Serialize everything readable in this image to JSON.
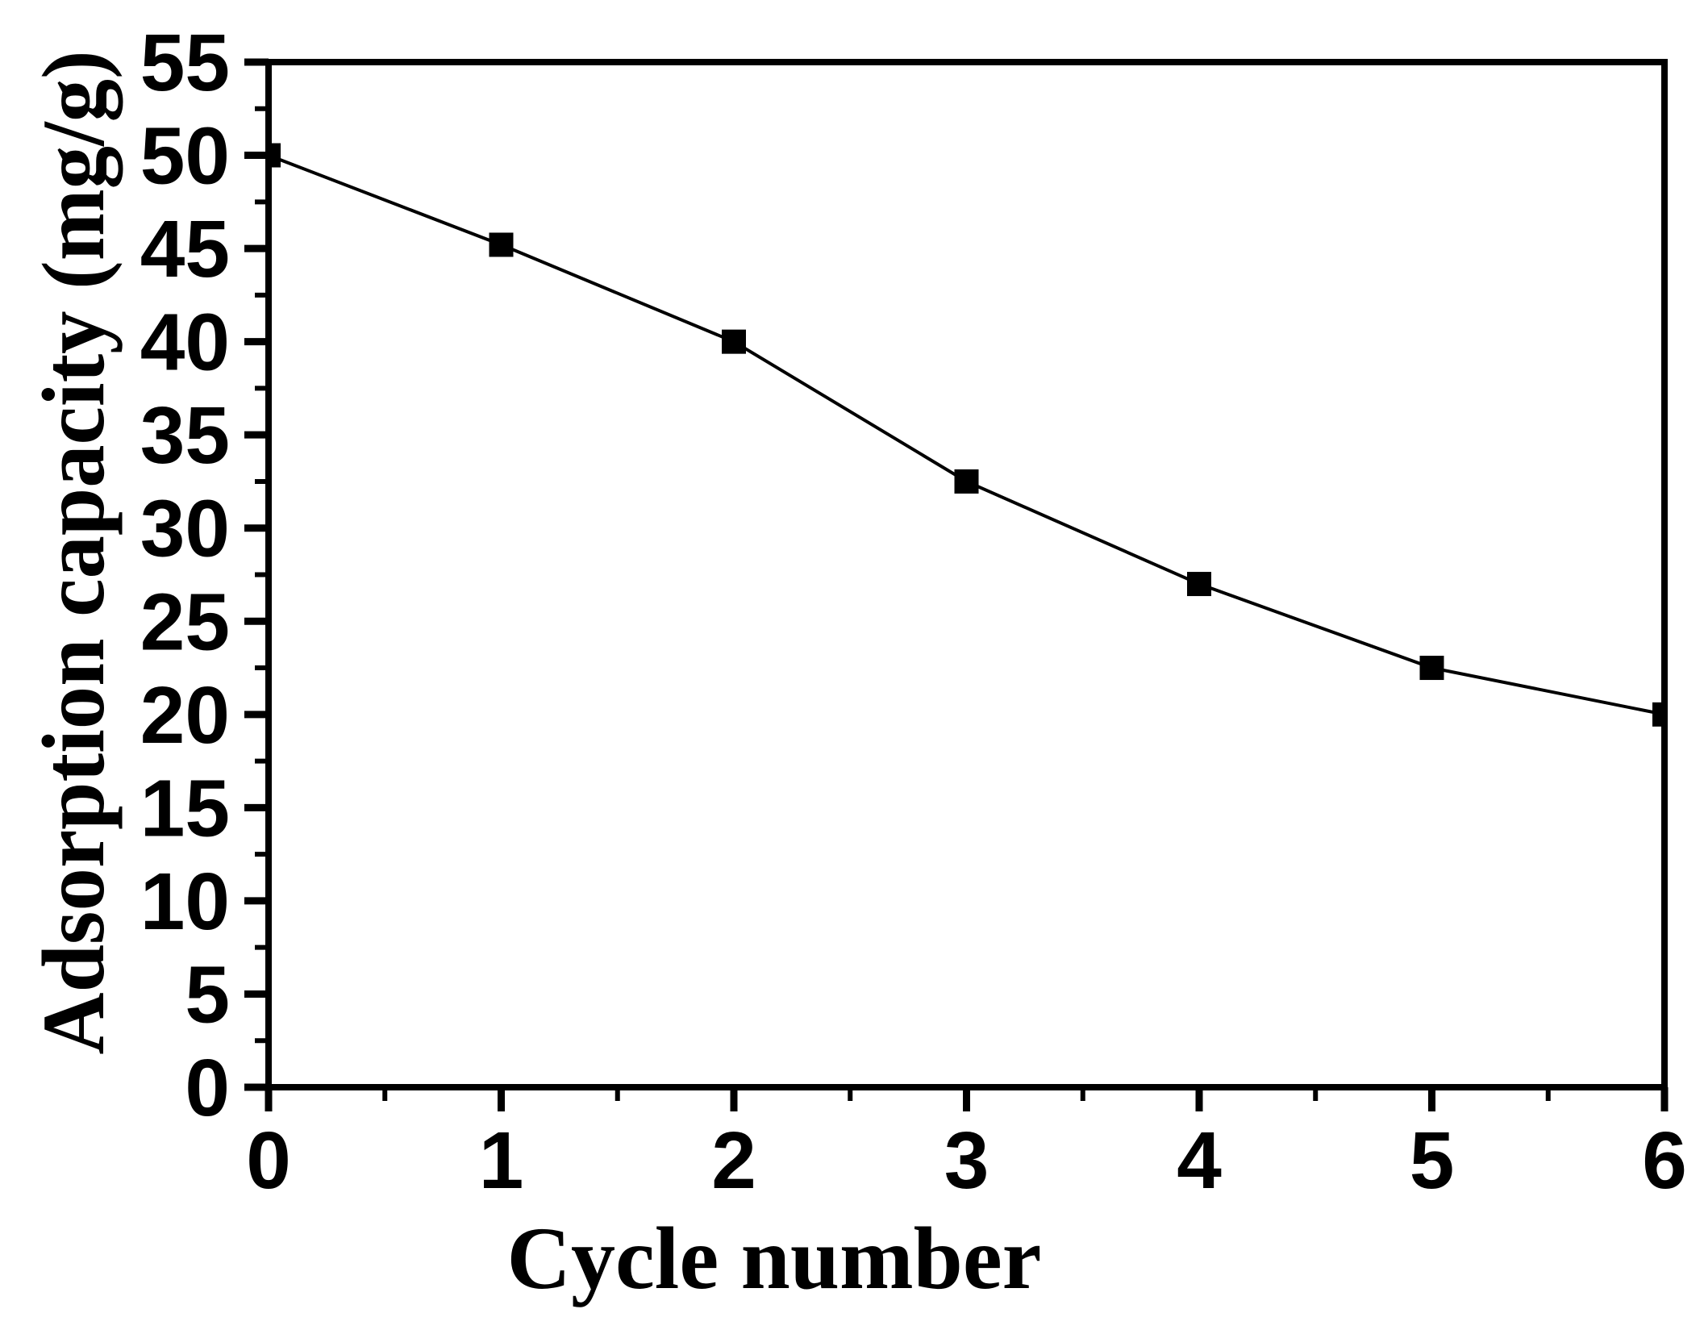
{
  "figure": {
    "background_color": "#ffffff",
    "foreground_color": "#000000"
  },
  "chart_data": {
    "type": "line",
    "title": "",
    "xlabel": "Cycle number",
    "ylabel": "Adsorption capacity (mg/g)",
    "x": [
      0,
      1,
      2,
      3,
      4,
      5,
      6
    ],
    "series": [
      {
        "name": "Adsorption capacity",
        "values": [
          50,
          45.2,
          40,
          32.5,
          27,
          22.5,
          20
        ]
      }
    ],
    "xlim": [
      0,
      6
    ],
    "ylim": [
      0,
      55
    ],
    "x_major_ticks": [
      0,
      1,
      2,
      3,
      4,
      5,
      6
    ],
    "x_tick_labels": [
      "0",
      "1",
      "2",
      "3",
      "4",
      "5",
      "6"
    ],
    "x_minor_step": 0.5,
    "y_major_ticks": [
      0,
      5,
      10,
      15,
      20,
      25,
      30,
      35,
      40,
      45,
      50,
      55
    ],
    "y_tick_labels": [
      "0",
      "5",
      "10",
      "15",
      "20",
      "25",
      "30",
      "35",
      "40",
      "45",
      "50",
      "55"
    ],
    "y_minor_step": 2.5,
    "grid": false,
    "legend_position": "none",
    "marker_shape": "filled-square",
    "line_color": "#000000",
    "marker_color": "#000000",
    "axis_color": "#000000"
  }
}
